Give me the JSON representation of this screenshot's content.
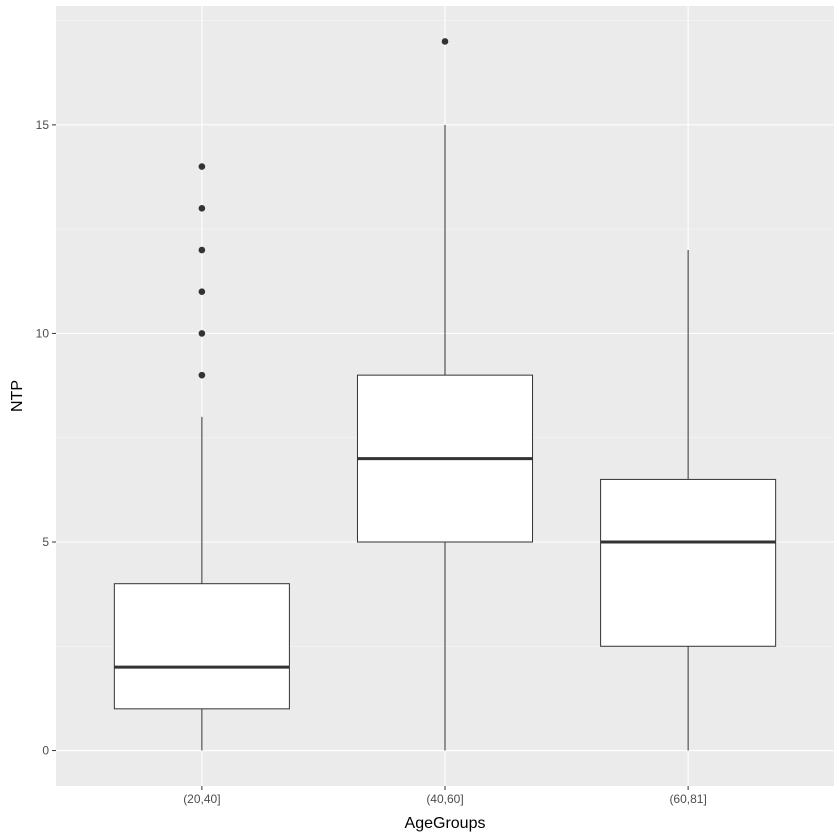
{
  "chart_data": {
    "type": "boxplot",
    "title": "",
    "xlabel": "AgeGroups",
    "ylabel": "NTP",
    "ylim": [
      -0.85,
      17.85
    ],
    "y_ticks": [
      0,
      5,
      10,
      15
    ],
    "y_tick_labels": [
      "0",
      "5",
      "10",
      "15"
    ],
    "y_minor_ticks": [
      2.5,
      7.5,
      12.5,
      17.5
    ],
    "categories": [
      "(20,40]",
      "(40,60]",
      "(60,81]"
    ],
    "grid": true,
    "legend": "none",
    "boxes": [
      {
        "category": "(20,40]",
        "whisker_low": 0,
        "q1": 1,
        "median": 2,
        "q3": 4,
        "whisker_high": 8,
        "outliers": [
          9,
          10,
          11,
          12,
          13,
          14
        ]
      },
      {
        "category": "(40,60]",
        "whisker_low": 0,
        "q1": 5,
        "median": 7,
        "q3": 9,
        "whisker_high": 15,
        "outliers": [
          17
        ]
      },
      {
        "category": "(60,81]",
        "whisker_low": 0,
        "q1": 2.5,
        "median": 5,
        "q3": 6.5,
        "whisker_high": 12,
        "outliers": []
      }
    ],
    "colors": {
      "panel_background": "#ebebeb",
      "grid_major": "#ffffff",
      "grid_minor": "#f5f5f5",
      "box_fill": "#ffffff",
      "box_line": "#333333",
      "tick_text": "#4d4d4d",
      "axis_ticks": "#333333",
      "title_text": "#000000"
    }
  }
}
